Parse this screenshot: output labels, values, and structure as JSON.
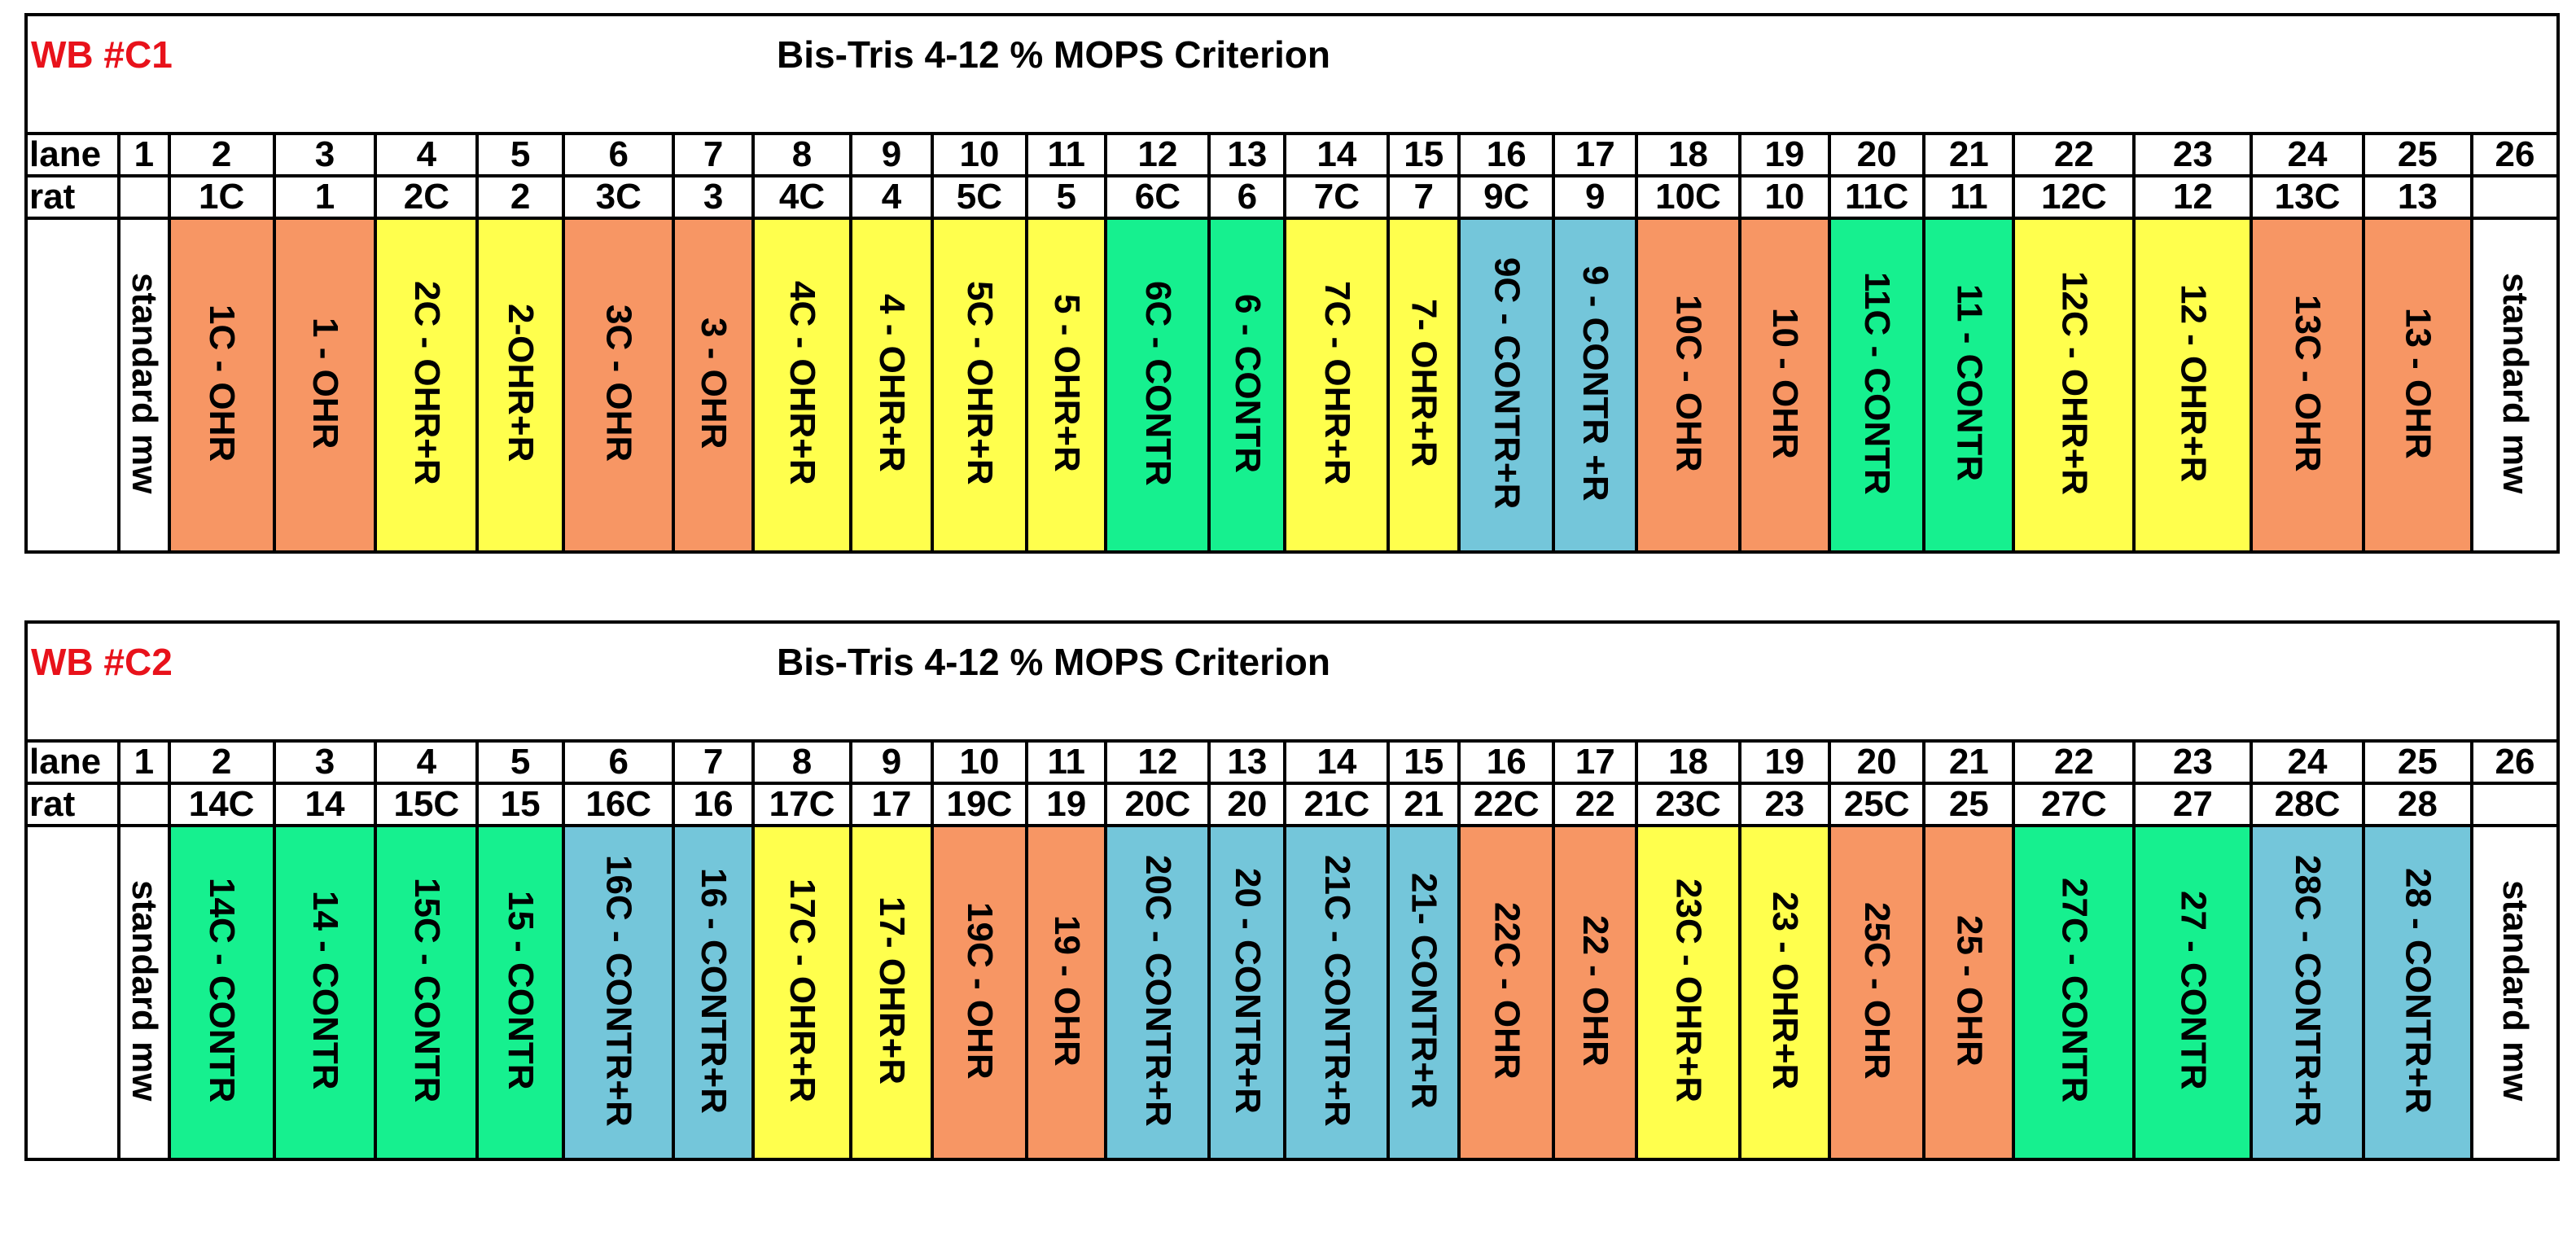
{
  "colors": {
    "wb_label": "#e8121b",
    "OHR": "#f79664",
    "OHR+R": "#ffff4d",
    "CONTR": "#16f08f",
    "CONTR+R": "#74c6da",
    "standard": "#ffffff"
  },
  "panels": [
    {
      "wb": "WB #C1",
      "title": "Bis-Tris 4-12 % MOPS Criterion",
      "lane_label": "lane",
      "rat_label": "rat",
      "lanes": [
        "1",
        "2",
        "3",
        "4",
        "5",
        "6",
        "7",
        "8",
        "9",
        "10",
        "11",
        "12",
        "13",
        "14",
        "15",
        "16",
        "17",
        "18",
        "19",
        "20",
        "21",
        "22",
        "23",
        "24",
        "25",
        "26"
      ],
      "rats": [
        "",
        "1C",
        "1",
        "2C",
        "2",
        "3C",
        "3",
        "4C",
        "4",
        "5C",
        "5",
        "6C",
        "6",
        "7C",
        "7",
        "9C",
        "9",
        "10C",
        "10",
        "11C",
        "11",
        "12C",
        "12",
        "13C",
        "13",
        ""
      ],
      "samples": [
        {
          "text": "standard mw",
          "group": "standard"
        },
        {
          "text": "1C - OHR",
          "group": "OHR"
        },
        {
          "text": "1 - OHR",
          "group": "OHR"
        },
        {
          "text": "2C - OHR+R",
          "group": "OHR+R"
        },
        {
          "text": "2-OHR+R",
          "group": "OHR+R"
        },
        {
          "text": "3C - OHR",
          "group": "OHR"
        },
        {
          "text": "3 - OHR",
          "group": "OHR"
        },
        {
          "text": "4C - OHR+R",
          "group": "OHR+R"
        },
        {
          "text": "4 - OHR+R",
          "group": "OHR+R"
        },
        {
          "text": "5C - OHR+R",
          "group": "OHR+R"
        },
        {
          "text": "5 - OHR+R",
          "group": "OHR+R"
        },
        {
          "text": "6C - CONTR",
          "group": "CONTR"
        },
        {
          "text": "6 - CONTR",
          "group": "CONTR"
        },
        {
          "text": "7C - OHR+R",
          "group": "OHR+R"
        },
        {
          "text": "7- OHR+R",
          "group": "OHR+R"
        },
        {
          "text": "9C - CONTR+R",
          "group": "CONTR+R"
        },
        {
          "text": "9 - CONTR +R",
          "group": "CONTR+R"
        },
        {
          "text": "10C - OHR",
          "group": "OHR"
        },
        {
          "text": "10 - OHR",
          "group": "OHR"
        },
        {
          "text": "11C - CONTR",
          "group": "CONTR"
        },
        {
          "text": "11 - CONTR",
          "group": "CONTR"
        },
        {
          "text": "12C - OHR+R",
          "group": "OHR+R"
        },
        {
          "text": "12 - OHR+R",
          "group": "OHR+R"
        },
        {
          "text": "13C - OHR",
          "group": "OHR"
        },
        {
          "text": "13 - OHR",
          "group": "OHR"
        },
        {
          "text": "standard mw",
          "group": "standard"
        }
      ]
    },
    {
      "wb": "WB #C2",
      "title": "Bis-Tris 4-12 % MOPS Criterion",
      "lane_label": "lane",
      "rat_label": "rat",
      "lanes": [
        "1",
        "2",
        "3",
        "4",
        "5",
        "6",
        "7",
        "8",
        "9",
        "10",
        "11",
        "12",
        "13",
        "14",
        "15",
        "16",
        "17",
        "18",
        "19",
        "20",
        "21",
        "22",
        "23",
        "24",
        "25",
        "26"
      ],
      "rats": [
        "",
        "14C",
        "14",
        "15C",
        "15",
        "16C",
        "16",
        "17C",
        "17",
        "19C",
        "19",
        "20C",
        "20",
        "21C",
        "21",
        "22C",
        "22",
        "23C",
        "23",
        "25C",
        "25",
        "27C",
        "27",
        "28C",
        "28",
        ""
      ],
      "samples": [
        {
          "text": "standard mw",
          "group": "standard"
        },
        {
          "text": "14C - CONTR",
          "group": "CONTR"
        },
        {
          "text": "14 - CONTR",
          "group": "CONTR"
        },
        {
          "text": "15C - CONTR",
          "group": "CONTR"
        },
        {
          "text": "15 - CONTR",
          "group": "CONTR"
        },
        {
          "text": "16C - CONTR+R",
          "group": "CONTR+R"
        },
        {
          "text": "16 - CONTR+R",
          "group": "CONTR+R"
        },
        {
          "text": "17C - OHR+R",
          "group": "OHR+R"
        },
        {
          "text": "17- OHR+R",
          "group": "OHR+R"
        },
        {
          "text": "19C - OHR",
          "group": "OHR"
        },
        {
          "text": "19 - OHR",
          "group": "OHR"
        },
        {
          "text": "20C - CONTR+R",
          "group": "CONTR+R"
        },
        {
          "text": "20 - CONTR+R",
          "group": "CONTR+R"
        },
        {
          "text": "21C - CONTR+R",
          "group": "CONTR+R"
        },
        {
          "text": "21- CONTR+R",
          "group": "CONTR+R"
        },
        {
          "text": "22C - OHR",
          "group": "OHR"
        },
        {
          "text": "22 - OHR",
          "group": "OHR"
        },
        {
          "text": "23C - OHR+R",
          "group": "OHR+R"
        },
        {
          "text": "23 - OHR+R",
          "group": "OHR+R"
        },
        {
          "text": "25C - OHR",
          "group": "OHR"
        },
        {
          "text": "25 - OHR",
          "group": "OHR"
        },
        {
          "text": "27C - CONTR",
          "group": "CONTR"
        },
        {
          "text": "27 - CONTR",
          "group": "CONTR"
        },
        {
          "text": "28C - CONTR+R",
          "group": "CONTR+R"
        },
        {
          "text": "28 - CONTR+R",
          "group": "CONTR+R"
        },
        {
          "text": "standard mw",
          "group": "standard"
        }
      ]
    }
  ]
}
